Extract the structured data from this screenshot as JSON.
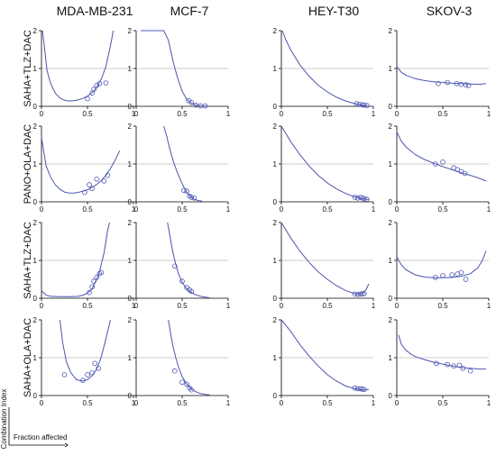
{
  "chart_data": {
    "type": "scatter",
    "columns": [
      "MDA-MB-231",
      "MCF-7",
      "HEY-T30",
      "SKOV-3"
    ],
    "rows": [
      "SAHA+TLZ+DAC",
      "PANO+OLA+DAC",
      "SAHA+TLZ+DAC",
      "SAHA+OLA+DAC"
    ],
    "xlim": [
      0,
      1
    ],
    "ylim": [
      0,
      2
    ],
    "x_ticks": [
      "0",
      "0.5",
      "1"
    ],
    "y_ticks": [
      "0",
      "1",
      "2"
    ],
    "reference_line_y": 1,
    "legend": {
      "y_axis": "Combination Index",
      "x_axis": "Fraction affected",
      "placement": "bottom-left"
    },
    "colors": {
      "curve": "#4a55b0",
      "reference": "#9a9a9a",
      "axis": "#000000"
    },
    "panels": [
      {
        "row": 0,
        "col": 0,
        "curve_x": [
          0.01,
          0.03,
          0.06,
          0.1,
          0.15,
          0.2,
          0.25,
          0.3,
          0.35,
          0.4,
          0.45,
          0.5,
          0.55,
          0.6,
          0.65,
          0.7,
          0.75,
          0.78
        ],
        "curve_y": [
          2.0,
          1.6,
          0.95,
          0.6,
          0.35,
          0.22,
          0.16,
          0.14,
          0.15,
          0.17,
          0.21,
          0.27,
          0.36,
          0.5,
          0.72,
          1.05,
          1.6,
          2.0
        ],
        "points": [
          [
            0.5,
            0.2
          ],
          [
            0.55,
            0.35
          ],
          [
            0.57,
            0.45
          ],
          [
            0.6,
            0.55
          ],
          [
            0.63,
            0.6
          ],
          [
            0.7,
            0.62
          ]
        ]
      },
      {
        "row": 0,
        "col": 1,
        "curve_x": [
          0.05,
          0.1,
          0.15,
          0.2,
          0.25,
          0.3,
          0.35,
          0.4,
          0.45,
          0.5,
          0.55,
          0.6,
          0.65,
          0.7,
          0.75,
          0.8
        ],
        "curve_y": [
          2.0,
          2.0,
          2.0,
          2.0,
          2.0,
          2.0,
          1.75,
          1.2,
          0.75,
          0.4,
          0.18,
          0.08,
          0.03,
          0.01,
          0.005,
          0.002
        ],
        "points": [
          [
            0.57,
            0.15
          ],
          [
            0.6,
            0.1
          ],
          [
            0.65,
            0.03
          ],
          [
            0.7,
            0.01
          ],
          [
            0.75,
            0.01
          ]
        ]
      },
      {
        "row": 0,
        "col": 2,
        "curve_x": [
          0.01,
          0.05,
          0.1,
          0.2,
          0.3,
          0.4,
          0.5,
          0.6,
          0.7,
          0.8,
          0.85,
          0.9,
          0.95
        ],
        "curve_y": [
          2.0,
          1.75,
          1.5,
          1.1,
          0.8,
          0.56,
          0.38,
          0.24,
          0.14,
          0.07,
          0.04,
          0.02,
          0.0
        ],
        "points": [
          [
            0.82,
            0.07
          ],
          [
            0.85,
            0.05
          ],
          [
            0.88,
            0.04
          ],
          [
            0.9,
            0.03
          ],
          [
            0.93,
            0.02
          ]
        ]
      },
      {
        "row": 0,
        "col": 3,
        "curve_x": [
          0.0,
          0.05,
          0.1,
          0.2,
          0.3,
          0.4,
          0.5,
          0.6,
          0.7,
          0.8,
          0.9,
          0.97
        ],
        "curve_y": [
          1.05,
          0.9,
          0.82,
          0.73,
          0.68,
          0.65,
          0.63,
          0.61,
          0.6,
          0.59,
          0.58,
          0.6
        ],
        "points": [
          [
            0.45,
            0.6
          ],
          [
            0.55,
            0.63
          ],
          [
            0.65,
            0.6
          ],
          [
            0.7,
            0.58
          ],
          [
            0.75,
            0.57
          ],
          [
            0.78,
            0.55
          ]
        ]
      },
      {
        "row": 1,
        "col": 0,
        "curve_x": [
          0.0,
          0.05,
          0.1,
          0.15,
          0.2,
          0.25,
          0.3,
          0.35,
          0.4,
          0.45,
          0.5,
          0.55,
          0.6,
          0.65,
          0.7,
          0.75,
          0.8,
          0.85
        ],
        "curve_y": [
          1.7,
          0.95,
          0.65,
          0.45,
          0.33,
          0.26,
          0.23,
          0.23,
          0.25,
          0.28,
          0.32,
          0.38,
          0.46,
          0.56,
          0.7,
          0.88,
          1.1,
          1.35
        ],
        "points": [
          [
            0.47,
            0.25
          ],
          [
            0.52,
            0.45
          ],
          [
            0.55,
            0.35
          ],
          [
            0.6,
            0.6
          ],
          [
            0.68,
            0.55
          ],
          [
            0.72,
            0.7
          ]
        ]
      },
      {
        "row": 1,
        "col": 1,
        "curve_x": [
          0.3,
          0.33,
          0.36,
          0.4,
          0.44,
          0.48,
          0.52,
          0.56,
          0.6,
          0.64,
          0.68,
          0.72
        ],
        "curve_y": [
          2.0,
          1.75,
          1.45,
          1.1,
          0.82,
          0.58,
          0.38,
          0.22,
          0.12,
          0.06,
          0.03,
          0.02
        ],
        "points": [
          [
            0.52,
            0.3
          ],
          [
            0.55,
            0.28
          ],
          [
            0.58,
            0.15
          ],
          [
            0.6,
            0.12
          ],
          [
            0.63,
            0.1
          ]
        ]
      },
      {
        "row": 1,
        "col": 2,
        "curve_x": [
          0.0,
          0.05,
          0.1,
          0.2,
          0.3,
          0.4,
          0.5,
          0.6,
          0.7,
          0.8,
          0.85,
          0.9,
          0.95
        ],
        "curve_y": [
          2.0,
          1.8,
          1.6,
          1.25,
          0.95,
          0.7,
          0.5,
          0.34,
          0.22,
          0.13,
          0.1,
          0.08,
          0.06
        ],
        "points": [
          [
            0.8,
            0.12
          ],
          [
            0.83,
            0.1
          ],
          [
            0.86,
            0.12
          ],
          [
            0.88,
            0.1
          ],
          [
            0.9,
            0.08
          ],
          [
            0.93,
            0.07
          ]
        ]
      },
      {
        "row": 1,
        "col": 3,
        "curve_x": [
          0.0,
          0.05,
          0.1,
          0.2,
          0.3,
          0.4,
          0.5,
          0.6,
          0.7,
          0.8,
          0.9,
          0.97
        ],
        "curve_y": [
          1.85,
          1.6,
          1.45,
          1.25,
          1.12,
          1.02,
          0.93,
          0.85,
          0.77,
          0.7,
          0.62,
          0.55
        ],
        "points": [
          [
            0.42,
            1.0
          ],
          [
            0.5,
            1.05
          ],
          [
            0.62,
            0.9
          ],
          [
            0.66,
            0.85
          ],
          [
            0.7,
            0.8
          ],
          [
            0.74,
            0.75
          ]
        ]
      },
      {
        "row": 2,
        "col": 0,
        "curve_x": [
          0.0,
          0.05,
          0.1,
          0.2,
          0.3,
          0.4,
          0.45,
          0.5,
          0.55,
          0.6,
          0.63,
          0.65,
          0.68,
          0.7,
          0.72,
          0.74
        ],
        "curve_y": [
          0.2,
          0.08,
          0.05,
          0.04,
          0.04,
          0.05,
          0.08,
          0.13,
          0.25,
          0.5,
          0.7,
          0.9,
          1.2,
          1.5,
          1.8,
          2.0
        ],
        "points": [
          [
            0.52,
            0.15
          ],
          [
            0.55,
            0.3
          ],
          [
            0.57,
            0.45
          ],
          [
            0.6,
            0.55
          ],
          [
            0.63,
            0.65
          ],
          [
            0.65,
            0.68
          ]
        ]
      },
      {
        "row": 2,
        "col": 1,
        "curve_x": [
          0.34,
          0.36,
          0.38,
          0.4,
          0.43,
          0.46,
          0.5,
          0.55,
          0.6,
          0.65,
          0.7,
          0.75,
          0.8
        ],
        "curve_y": [
          2.0,
          1.75,
          1.45,
          1.2,
          0.9,
          0.65,
          0.42,
          0.25,
          0.15,
          0.09,
          0.05,
          0.03,
          0.01
        ],
        "points": [
          [
            0.42,
            0.85
          ],
          [
            0.5,
            0.45
          ],
          [
            0.55,
            0.28
          ],
          [
            0.58,
            0.22
          ],
          [
            0.6,
            0.18
          ]
        ]
      },
      {
        "row": 2,
        "col": 2,
        "curve_x": [
          0.0,
          0.05,
          0.1,
          0.2,
          0.3,
          0.4,
          0.5,
          0.6,
          0.7,
          0.8,
          0.85,
          0.88,
          0.92,
          0.95
        ],
        "curve_y": [
          2.0,
          1.8,
          1.6,
          1.25,
          0.95,
          0.7,
          0.5,
          0.33,
          0.2,
          0.12,
          0.11,
          0.13,
          0.22,
          0.38
        ],
        "points": [
          [
            0.8,
            0.11
          ],
          [
            0.83,
            0.1
          ],
          [
            0.86,
            0.11
          ],
          [
            0.88,
            0.12
          ],
          [
            0.9,
            0.12
          ]
        ]
      },
      {
        "row": 2,
        "col": 3,
        "curve_x": [
          0.0,
          0.02,
          0.05,
          0.1,
          0.2,
          0.3,
          0.4,
          0.5,
          0.6,
          0.7,
          0.8,
          0.88,
          0.93,
          0.97
        ],
        "curve_y": [
          1.1,
          1.0,
          0.88,
          0.75,
          0.62,
          0.56,
          0.54,
          0.54,
          0.55,
          0.58,
          0.65,
          0.8,
          1.0,
          1.25
        ],
        "points": [
          [
            0.42,
            0.55
          ],
          [
            0.5,
            0.6
          ],
          [
            0.6,
            0.62
          ],
          [
            0.66,
            0.64
          ],
          [
            0.7,
            0.68
          ],
          [
            0.75,
            0.5
          ]
        ]
      },
      {
        "row": 3,
        "col": 0,
        "curve_x": [
          0.2,
          0.23,
          0.27,
          0.32,
          0.38,
          0.44,
          0.5,
          0.55,
          0.6,
          0.64,
          0.67,
          0.7,
          0.73,
          0.75
        ],
        "curve_y": [
          2.0,
          1.4,
          0.9,
          0.6,
          0.42,
          0.38,
          0.42,
          0.52,
          0.7,
          0.95,
          1.2,
          1.5,
          1.8,
          2.0
        ],
        "points": [
          [
            0.25,
            0.55
          ],
          [
            0.45,
            0.4
          ],
          [
            0.5,
            0.55
          ],
          [
            0.55,
            0.6
          ],
          [
            0.58,
            0.85
          ],
          [
            0.62,
            0.72
          ]
        ]
      },
      {
        "row": 3,
        "col": 1,
        "curve_x": [
          0.35,
          0.38,
          0.4,
          0.43,
          0.46,
          0.5,
          0.55,
          0.6,
          0.65,
          0.7,
          0.75,
          0.8
        ],
        "curve_y": [
          2.0,
          1.55,
          1.3,
          1.0,
          0.75,
          0.5,
          0.3,
          0.17,
          0.1,
          0.05,
          0.03,
          0.02
        ],
        "points": [
          [
            0.42,
            0.65
          ],
          [
            0.5,
            0.35
          ],
          [
            0.55,
            0.3
          ],
          [
            0.58,
            0.2
          ],
          [
            0.6,
            0.15
          ]
        ]
      },
      {
        "row": 3,
        "col": 2,
        "curve_x": [
          0.0,
          0.05,
          0.1,
          0.2,
          0.3,
          0.4,
          0.5,
          0.6,
          0.7,
          0.8,
          0.85,
          0.9,
          0.95
        ],
        "curve_y": [
          2.0,
          1.85,
          1.7,
          1.35,
          1.05,
          0.78,
          0.55,
          0.38,
          0.25,
          0.18,
          0.16,
          0.15,
          0.16
        ],
        "points": [
          [
            0.8,
            0.2
          ],
          [
            0.83,
            0.18
          ],
          [
            0.86,
            0.18
          ],
          [
            0.88,
            0.17
          ],
          [
            0.9,
            0.16
          ]
        ]
      },
      {
        "row": 3,
        "col": 3,
        "curve_x": [
          0.02,
          0.05,
          0.1,
          0.15,
          0.2,
          0.3,
          0.4,
          0.5,
          0.6,
          0.7,
          0.8,
          0.9,
          0.97
        ],
        "curve_y": [
          1.6,
          1.35,
          1.2,
          1.1,
          1.03,
          0.95,
          0.88,
          0.83,
          0.78,
          0.74,
          0.72,
          0.7,
          0.7
        ],
        "points": [
          [
            0.43,
            0.85
          ],
          [
            0.55,
            0.82
          ],
          [
            0.62,
            0.78
          ],
          [
            0.68,
            0.8
          ],
          [
            0.72,
            0.72
          ],
          [
            0.8,
            0.65
          ]
        ]
      }
    ]
  }
}
